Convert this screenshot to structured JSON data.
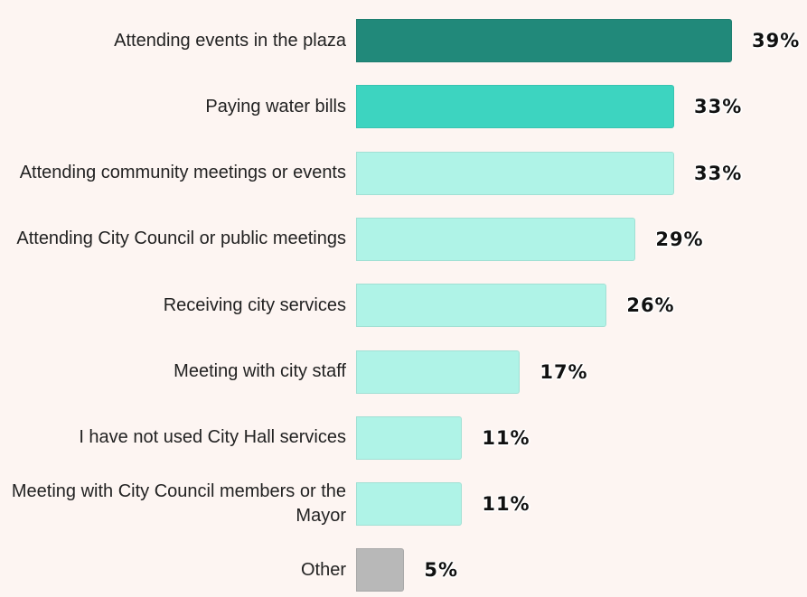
{
  "chart_data": {
    "type": "bar",
    "orientation": "horizontal",
    "categories": [
      "Attending events in the plaza",
      "Paying water bills",
      "Attending community meetings or events",
      "Attending City Council or public meetings",
      "Receiving city services",
      "Meeting with city staff",
      "I have not used City Hall services",
      "Meeting with City Council members or the Mayor",
      "Other"
    ],
    "values": [
      39,
      33,
      33,
      29,
      26,
      17,
      11,
      11,
      5
    ],
    "value_labels": [
      "39%",
      "33%",
      "33%",
      "29%",
      "26%",
      "17%",
      "11%",
      "11%",
      "5%"
    ],
    "colors": [
      "#21897a",
      "#3dd4c0",
      "#aff3e7",
      "#aff3e7",
      "#aff3e7",
      "#aff3e7",
      "#aff3e7",
      "#aff3e7",
      "#b8b8b8"
    ]
  }
}
